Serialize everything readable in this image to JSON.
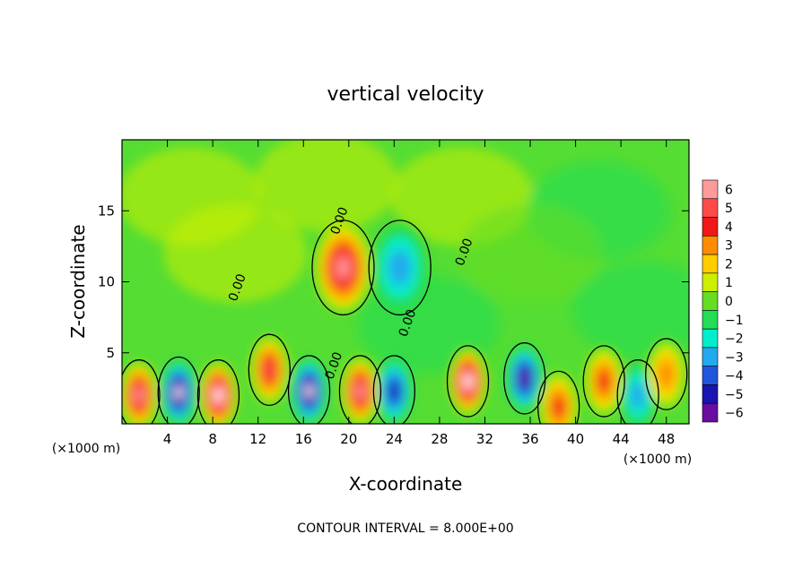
{
  "chart_data": {
    "type": "heatmap",
    "title": "vertical velocity",
    "xlabel": "X-coordinate",
    "ylabel": "Z-coordinate",
    "x_unit": "(×1000 m)",
    "y_unit": "(×1000 m)",
    "xlim": [
      0,
      50
    ],
    "ylim": [
      0,
      20
    ],
    "x_ticks": [
      4,
      8,
      12,
      16,
      20,
      24,
      28,
      32,
      36,
      40,
      44,
      48
    ],
    "y_ticks": [
      5,
      10,
      15
    ],
    "x_tick_labels": [
      "4",
      "8",
      "12",
      "16",
      "20",
      "24",
      "28",
      "32",
      "36",
      "40",
      "44",
      "48"
    ],
    "y_tick_labels": [
      "5",
      "10",
      "15"
    ],
    "contour_label": "0.00",
    "contour_interval_text": "CONTOUR INTERVAL = 8.000E+00",
    "colorbar": {
      "range": [
        -6,
        6
      ],
      "levels": [
        6,
        5,
        4,
        3,
        2,
        1,
        0,
        -1,
        -2,
        -3,
        -4,
        -5,
        -6
      ],
      "labels": [
        "6",
        "5",
        "4",
        "3",
        "2",
        "1",
        "0",
        "−1",
        "−2",
        "−3",
        "−4",
        "−5",
        "−6"
      ],
      "colors": [
        "#ff9a9a",
        "#ff4a4a",
        "#f01818",
        "#ff8c00",
        "#ffcc00",
        "#ccee00",
        "#66dd22",
        "#22dd55",
        "#00eecc",
        "#22aaee",
        "#2255dd",
        "#1a14b0",
        "#6a0ca0"
      ]
    },
    "features": [
      {
        "x": 1.5,
        "z": 2.0,
        "w": 6
      },
      {
        "x": 5.0,
        "z": 2.2,
        "w": -7
      },
      {
        "x": 8.5,
        "z": 2.0,
        "w": 6.5
      },
      {
        "x": 13.0,
        "z": 3.8,
        "w": 4.5
      },
      {
        "x": 16.5,
        "z": 2.3,
        "w": -6.5
      },
      {
        "x": 19.5,
        "z": 11.0,
        "w": 5.5
      },
      {
        "x": 21.0,
        "z": 2.3,
        "w": 6
      },
      {
        "x": 24.0,
        "z": 2.3,
        "w": -4.5
      },
      {
        "x": 24.5,
        "z": 11.0,
        "w": -2.8
      },
      {
        "x": 30.5,
        "z": 3.0,
        "w": 6.5
      },
      {
        "x": 35.5,
        "z": 3.2,
        "w": -5.5
      },
      {
        "x": 38.5,
        "z": 1.2,
        "w": 4
      },
      {
        "x": 42.5,
        "z": 3.0,
        "w": 4
      },
      {
        "x": 45.5,
        "z": 2.0,
        "w": -2.5
      },
      {
        "x": 48.0,
        "z": 3.5,
        "w": 3
      }
    ],
    "background_w": 0.5
  }
}
